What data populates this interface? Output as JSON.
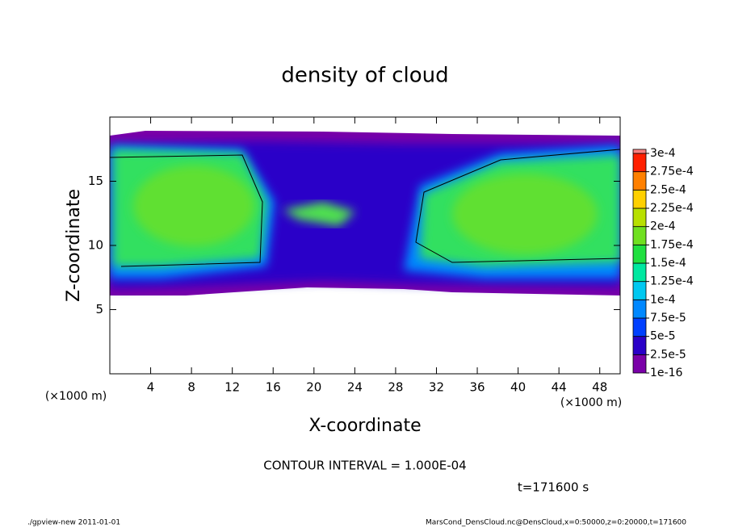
{
  "chart_data": {
    "type": "contour",
    "title": "density of cloud",
    "x_label": "X-coordinate",
    "y_label": "Z-coordinate",
    "x_unit": "(×1000 m)",
    "y_unit": "(×1000 m)",
    "xlim": [
      0,
      50
    ],
    "ylim": [
      0,
      20
    ],
    "xticks": [
      4,
      8,
      12,
      16,
      20,
      24,
      28,
      32,
      36,
      40,
      44,
      48
    ],
    "yticks": [
      5,
      10,
      15
    ],
    "colorbar_ticks": [
      {
        "value": 1e-16,
        "label": "1e-16"
      },
      {
        "value": 2.5e-05,
        "label": "2.5e-5"
      },
      {
        "value": 5e-05,
        "label": "5e-5"
      },
      {
        "value": 7.5e-05,
        "label": "7.5e-5"
      },
      {
        "value": 0.0001,
        "label": "1e-4"
      },
      {
        "value": 0.000125,
        "label": "1.25e-4"
      },
      {
        "value": 0.00015,
        "label": "1.5e-4"
      },
      {
        "value": 0.000175,
        "label": "1.75e-4"
      },
      {
        "value": 0.0002,
        "label": "2e-4"
      },
      {
        "value": 0.000225,
        "label": "2.25e-4"
      },
      {
        "value": 0.00025,
        "label": "2.5e-4"
      },
      {
        "value": 0.000275,
        "label": "2.75e-4"
      },
      {
        "value": 0.0003,
        "label": "3e-4"
      }
    ],
    "colorbar_colors": [
      "#7a00a8",
      "#2a00c8",
      "#0040ff",
      "#0088ff",
      "#00c8f0",
      "#00e8a0",
      "#20e040",
      "#70e020",
      "#b8e000",
      "#ffd000",
      "#ff8000",
      "#ff2000",
      "#ff8080"
    ],
    "contour_note": "CONTOUR INTERVAL = 1.000E-04",
    "time_note": "t=171600 s",
    "footer_left": "./gpview-new  2011-01-01",
    "footer_right": "MarsCond_DensCloud.nc@DensCloud,x=0:50000,z=0:20000,t=171600"
  }
}
